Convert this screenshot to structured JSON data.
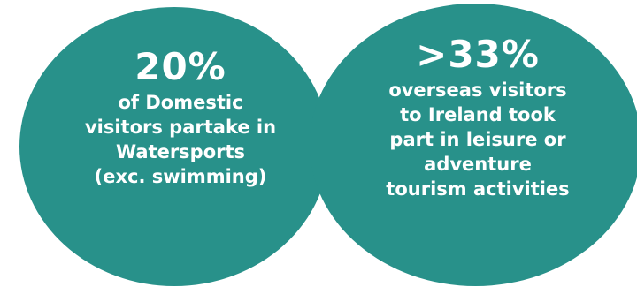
{
  "colors": {
    "circle_fill": "#28918a",
    "text": "#ffffff",
    "background": "#ffffff"
  },
  "left_stat": {
    "value": "20%",
    "lines": [
      "of Domestic",
      "visitors partake in",
      "Watersports",
      "(exc. swimming)"
    ]
  },
  "right_stat": {
    "value": ">33%",
    "lines": [
      "overseas visitors",
      "to Ireland took",
      "part in leisure or",
      "adventure",
      "tourism activities"
    ]
  }
}
